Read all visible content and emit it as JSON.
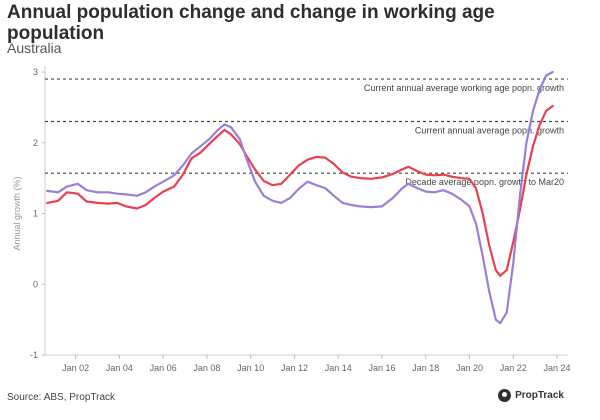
{
  "title": "Annual population change and change in working age population",
  "subtitle": "Australia",
  "source": "Source: ABS, PropTrack",
  "brand": "PropTrack",
  "colors": {
    "population": "#e8404f",
    "working_age": "#9b7fd6",
    "reference": "#444444"
  },
  "chart_data": {
    "type": "line",
    "title": "Annual population change and change in working age population",
    "subtitle": "Australia",
    "xlabel": "",
    "ylabel": "Annual growth (%)",
    "ylim": [
      -1,
      3
    ],
    "xlim": [
      2000.6,
      2024.5
    ],
    "yticks": [
      "-1",
      "0",
      "1",
      "2",
      "3"
    ],
    "xticks": [
      {
        "label": "Jan 02",
        "x": 2002.0
      },
      {
        "label": "Jan 04",
        "x": 2004.0
      },
      {
        "label": "Jan 06",
        "x": 2006.0
      },
      {
        "label": "Jan 08",
        "x": 2008.0
      },
      {
        "label": "Jan 10",
        "x": 2010.0
      },
      {
        "label": "Jan 12",
        "x": 2012.0
      },
      {
        "label": "Jan 14",
        "x": 2014.0
      },
      {
        "label": "Jan 16",
        "x": 2016.0
      },
      {
        "label": "Jan 18",
        "x": 2018.0
      },
      {
        "label": "Jan 20",
        "x": 2020.0
      },
      {
        "label": "Jan 22",
        "x": 2022.0
      },
      {
        "label": "Jan 24",
        "x": 2024.0
      }
    ],
    "legend": "none",
    "grid": false,
    "series": [
      {
        "key": "population",
        "points": [
          [
            2000.7,
            1.15
          ],
          [
            2001.2,
            1.18
          ],
          [
            2001.6,
            1.3
          ],
          [
            2002.1,
            1.28
          ],
          [
            2002.5,
            1.17
          ],
          [
            2003.0,
            1.15
          ],
          [
            2003.5,
            1.14
          ],
          [
            2003.9,
            1.15
          ],
          [
            2004.3,
            1.1
          ],
          [
            2004.8,
            1.07
          ],
          [
            2005.2,
            1.12
          ],
          [
            2005.6,
            1.22
          ],
          [
            2006.0,
            1.31
          ],
          [
            2006.5,
            1.38
          ],
          [
            2006.9,
            1.55
          ],
          [
            2007.3,
            1.78
          ],
          [
            2007.7,
            1.86
          ],
          [
            2008.1,
            1.98
          ],
          [
            2008.5,
            2.1
          ],
          [
            2008.8,
            2.18
          ],
          [
            2009.1,
            2.12
          ],
          [
            2009.5,
            1.98
          ],
          [
            2009.8,
            1.82
          ],
          [
            2010.2,
            1.62
          ],
          [
            2010.6,
            1.46
          ],
          [
            2011.0,
            1.4
          ],
          [
            2011.4,
            1.42
          ],
          [
            2011.8,
            1.55
          ],
          [
            2012.2,
            1.68
          ],
          [
            2012.6,
            1.76
          ],
          [
            2013.0,
            1.8
          ],
          [
            2013.4,
            1.79
          ],
          [
            2013.8,
            1.7
          ],
          [
            2014.2,
            1.58
          ],
          [
            2014.6,
            1.52
          ],
          [
            2015.0,
            1.5
          ],
          [
            2015.5,
            1.49
          ],
          [
            2016.0,
            1.51
          ],
          [
            2016.5,
            1.56
          ],
          [
            2016.9,
            1.62
          ],
          [
            2017.2,
            1.66
          ],
          [
            2017.6,
            1.6
          ],
          [
            2018.0,
            1.55
          ],
          [
            2018.4,
            1.54
          ],
          [
            2018.8,
            1.55
          ],
          [
            2019.2,
            1.52
          ],
          [
            2019.6,
            1.5
          ],
          [
            2020.0,
            1.49
          ],
          [
            2020.3,
            1.35
          ],
          [
            2020.6,
            1.0
          ],
          [
            2020.9,
            0.55
          ],
          [
            2021.2,
            0.2
          ],
          [
            2021.4,
            0.12
          ],
          [
            2021.7,
            0.2
          ],
          [
            2022.0,
            0.6
          ],
          [
            2022.3,
            1.05
          ],
          [
            2022.6,
            1.55
          ],
          [
            2022.9,
            1.95
          ],
          [
            2023.2,
            2.25
          ],
          [
            2023.5,
            2.45
          ],
          [
            2023.8,
            2.52
          ]
        ]
      },
      {
        "key": "working_age",
        "points": [
          [
            2000.7,
            1.32
          ],
          [
            2001.2,
            1.3
          ],
          [
            2001.6,
            1.38
          ],
          [
            2002.1,
            1.42
          ],
          [
            2002.5,
            1.33
          ],
          [
            2003.0,
            1.3
          ],
          [
            2003.5,
            1.3
          ],
          [
            2003.9,
            1.28
          ],
          [
            2004.3,
            1.27
          ],
          [
            2004.8,
            1.25
          ],
          [
            2005.2,
            1.3
          ],
          [
            2005.6,
            1.38
          ],
          [
            2006.0,
            1.45
          ],
          [
            2006.5,
            1.54
          ],
          [
            2006.9,
            1.68
          ],
          [
            2007.3,
            1.85
          ],
          [
            2007.7,
            1.95
          ],
          [
            2008.1,
            2.05
          ],
          [
            2008.5,
            2.18
          ],
          [
            2008.8,
            2.26
          ],
          [
            2009.1,
            2.22
          ],
          [
            2009.5,
            2.05
          ],
          [
            2009.8,
            1.78
          ],
          [
            2010.2,
            1.45
          ],
          [
            2010.6,
            1.25
          ],
          [
            2011.0,
            1.18
          ],
          [
            2011.4,
            1.15
          ],
          [
            2011.8,
            1.22
          ],
          [
            2012.2,
            1.35
          ],
          [
            2012.6,
            1.45
          ],
          [
            2013.0,
            1.4
          ],
          [
            2013.4,
            1.36
          ],
          [
            2013.8,
            1.25
          ],
          [
            2014.2,
            1.15
          ],
          [
            2014.6,
            1.12
          ],
          [
            2015.0,
            1.1
          ],
          [
            2015.5,
            1.09
          ],
          [
            2016.0,
            1.1
          ],
          [
            2016.5,
            1.22
          ],
          [
            2016.9,
            1.35
          ],
          [
            2017.2,
            1.42
          ],
          [
            2017.6,
            1.36
          ],
          [
            2018.0,
            1.31
          ],
          [
            2018.4,
            1.3
          ],
          [
            2018.8,
            1.33
          ],
          [
            2019.2,
            1.28
          ],
          [
            2019.6,
            1.2
          ],
          [
            2020.0,
            1.1
          ],
          [
            2020.3,
            0.85
          ],
          [
            2020.6,
            0.4
          ],
          [
            2020.9,
            -0.1
          ],
          [
            2021.2,
            -0.5
          ],
          [
            2021.4,
            -0.55
          ],
          [
            2021.7,
            -0.4
          ],
          [
            2022.0,
            0.3
          ],
          [
            2022.3,
            1.25
          ],
          [
            2022.6,
            2.0
          ],
          [
            2022.9,
            2.45
          ],
          [
            2023.2,
            2.75
          ],
          [
            2023.5,
            2.95
          ],
          [
            2023.8,
            3.0
          ]
        ]
      }
    ],
    "reference_lines": [
      {
        "y": 2.9,
        "label": "Current annual average working age popn. growth"
      },
      {
        "y": 2.3,
        "label": "Current annual average popn. growth"
      },
      {
        "y": 1.57,
        "label": "Decade average popn. growth to Mar20"
      }
    ]
  }
}
